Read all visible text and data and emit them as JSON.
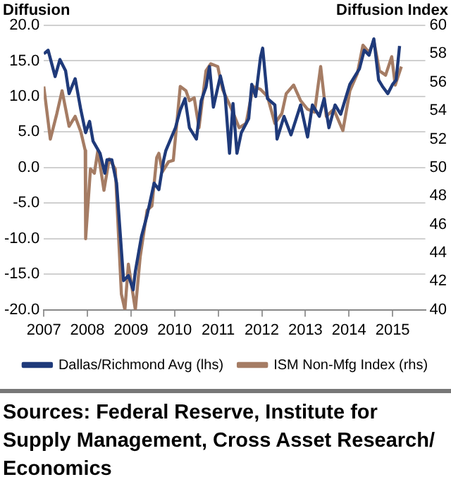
{
  "chart_data": {
    "type": "line",
    "ylabel": "Diffusion",
    "y2label": "Diffusion Index",
    "xlim": [
      2007,
      2015.75
    ],
    "xticks": [
      2007,
      2008,
      2009,
      2010,
      2011,
      2012,
      2013,
      2014,
      2015
    ],
    "ylim": [
      -20,
      20
    ],
    "yticks": [
      {
        "value": -20,
        "label": "-20.0"
      },
      {
        "value": -15,
        "label": "-15.0"
      },
      {
        "value": -10,
        "label": "-10.0"
      },
      {
        "value": -5,
        "label": "-5.0"
      },
      {
        "value": 0,
        "label": "0.0"
      },
      {
        "value": 5,
        "label": "5.0"
      },
      {
        "value": 10,
        "label": "10.0"
      },
      {
        "value": 15,
        "label": "15.0"
      },
      {
        "value": 20,
        "label": "20.0"
      }
    ],
    "y2lim": [
      40,
      60
    ],
    "y2ticks": [
      40,
      42,
      44,
      46,
      48,
      50,
      52,
      54,
      56,
      58,
      60
    ],
    "grid": "y",
    "legend": "bottom",
    "marker": "none",
    "line_style": "solid",
    "series": [
      {
        "name": "Dallas/Richmond Avg (lhs)",
        "color": "#1f3a7a",
        "x": [
          2007.0,
          2007.1,
          2007.26,
          2007.37,
          2007.5,
          2007.58,
          2007.72,
          2007.85,
          2007.96,
          2008.05,
          2008.13,
          2008.29,
          2008.4,
          2008.45,
          2008.56,
          2008.67,
          2008.83,
          2008.94,
          2009.05,
          2009.1,
          2009.24,
          2009.37,
          2009.53,
          2009.64,
          2009.75,
          2009.8,
          2009.91,
          2010.02,
          2010.13,
          2010.24,
          2010.34,
          2010.5,
          2010.61,
          2010.72,
          2010.8,
          2010.89,
          2011.05,
          2011.16,
          2011.26,
          2011.34,
          2011.43,
          2011.53,
          2011.7,
          2011.77,
          2011.86,
          2011.97,
          2012.02,
          2012.13,
          2012.3,
          2012.35,
          2012.51,
          2012.67,
          2012.89,
          2013.05,
          2013.16,
          2013.32,
          2013.43,
          2013.54,
          2013.68,
          2013.81,
          2014.02,
          2014.24,
          2014.35,
          2014.46,
          2014.57,
          2014.68,
          2014.78,
          2014.89,
          2015.0,
          2015.08,
          2015.16
        ],
        "values": [
          16.0,
          16.5,
          12.8,
          15.2,
          13.6,
          10.4,
          12.5,
          8.1,
          4.9,
          6.5,
          3.7,
          2.0,
          -0.8,
          1.1,
          1.1,
          -2.2,
          -15.9,
          -15.2,
          -17.2,
          -14.6,
          -9.7,
          -6.7,
          -2.2,
          -3.1,
          1.1,
          2.4,
          4.0,
          5.6,
          8.1,
          9.7,
          5.6,
          4.0,
          9.4,
          11.3,
          14.2,
          8.5,
          12.9,
          10.0,
          2.0,
          9.0,
          2.0,
          4.9,
          6.9,
          11.7,
          10.0,
          15.5,
          16.8,
          9.7,
          8.8,
          4.0,
          7.2,
          4.6,
          8.8,
          4.3,
          8.8,
          7.2,
          9.7,
          5.6,
          8.8,
          7.5,
          11.7,
          13.9,
          16.5,
          15.8,
          18.1,
          12.3,
          11.3,
          10.4,
          11.7,
          12.3,
          17.1
        ]
      },
      {
        "name": "ISM Non-Mfg Index (rhs)",
        "color": "#a57c64",
        "axis": "y2",
        "x": [
          2007.0,
          2007.15,
          2007.3,
          2007.42,
          2007.58,
          2007.72,
          2007.85,
          2007.95,
          2007.96,
          2008.07,
          2008.16,
          2008.24,
          2008.38,
          2008.5,
          2008.64,
          2008.78,
          2008.86,
          2008.94,
          2009.1,
          2009.21,
          2009.37,
          2009.48,
          2009.59,
          2009.64,
          2009.72,
          2009.86,
          2009.97,
          2010.13,
          2010.26,
          2010.34,
          2010.45,
          2010.56,
          2010.72,
          2010.83,
          2010.99,
          2011.1,
          2011.31,
          2011.48,
          2011.64,
          2011.8,
          2011.97,
          2012.13,
          2012.3,
          2012.46,
          2012.56,
          2012.73,
          2012.89,
          2013.05,
          2013.21,
          2013.35,
          2013.48,
          2013.65,
          2013.86,
          2014.02,
          2014.19,
          2014.32,
          2014.46,
          2014.57,
          2014.7,
          2014.84,
          2014.98,
          2015.06,
          2015.2
        ],
        "values": [
          55.7,
          52.0,
          53.8,
          55.4,
          52.9,
          53.6,
          52.5,
          51.2,
          45.0,
          49.9,
          49.6,
          51.2,
          48.4,
          50.6,
          49.9,
          41.1,
          40,
          43.2,
          40,
          43.7,
          47.0,
          47.3,
          50.7,
          51.0,
          49.7,
          50.4,
          50.5,
          55.7,
          55.4,
          54.7,
          54.9,
          52.8,
          56.8,
          57.3,
          57.1,
          55.5,
          54.1,
          52.8,
          53.1,
          55.7,
          55.5,
          55.0,
          53.1,
          53.8,
          55.2,
          55.8,
          54.7,
          54.1,
          53.9,
          57.1,
          53.6,
          54.1,
          52.6,
          55.4,
          56.6,
          58.6,
          58.1,
          58.9,
          56.8,
          56.5,
          57.8,
          55.8,
          57.1
        ]
      }
    ],
    "annotations": [
      "Sources: Federal Reserve, Institute for Supply Management, Cross Asset Research/ Economics"
    ]
  }
}
